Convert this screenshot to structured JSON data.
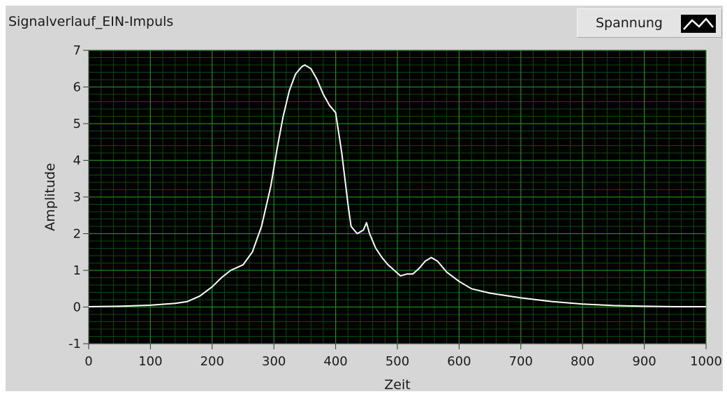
{
  "window": {
    "title": "Signalverlauf_EIN-Impuls"
  },
  "legend": {
    "label": "Spannung",
    "icon": "line-plot-icon"
  },
  "colors": {
    "panel": "#d6d6d6",
    "plot_bg": "#000000",
    "major_grid": "#1f8a1f",
    "minor_grid": "#0a4a0a",
    "trace": "#ffffff"
  },
  "chart_data": {
    "type": "line",
    "title": "Signalverlauf_EIN-Impuls",
    "xlabel": "Zeit",
    "ylabel": "Amplitude",
    "xlim": [
      0,
      1000
    ],
    "ylim": [
      -1,
      7
    ],
    "xticks": [
      0,
      100,
      200,
      300,
      400,
      500,
      600,
      700,
      800,
      900,
      1000
    ],
    "yticks": [
      -1,
      0,
      1,
      2,
      3,
      4,
      5,
      6,
      7
    ],
    "grid": true,
    "legend_position": "top-right",
    "series": [
      {
        "name": "Spannung",
        "x": [
          0,
          50,
          100,
          140,
          160,
          180,
          200,
          215,
          230,
          250,
          265,
          280,
          295,
          305,
          315,
          325,
          335,
          345,
          350,
          360,
          370,
          380,
          390,
          400,
          410,
          420,
          425,
          435,
          445,
          450,
          455,
          465,
          475,
          485,
          495,
          505,
          515,
          525,
          535,
          545,
          555,
          565,
          580,
          600,
          620,
          650,
          700,
          750,
          800,
          850,
          900,
          950,
          1000
        ],
        "y": [
          0.01,
          0.02,
          0.05,
          0.1,
          0.15,
          0.3,
          0.55,
          0.8,
          1.0,
          1.15,
          1.5,
          2.2,
          3.3,
          4.3,
          5.2,
          5.9,
          6.35,
          6.55,
          6.6,
          6.5,
          6.2,
          5.8,
          5.5,
          5.3,
          4.2,
          2.8,
          2.2,
          2.0,
          2.1,
          2.3,
          2.0,
          1.6,
          1.35,
          1.15,
          1.0,
          0.85,
          0.9,
          0.9,
          1.05,
          1.25,
          1.35,
          1.25,
          0.95,
          0.7,
          0.5,
          0.38,
          0.25,
          0.15,
          0.08,
          0.04,
          0.02,
          0.01,
          0.01
        ]
      }
    ]
  }
}
